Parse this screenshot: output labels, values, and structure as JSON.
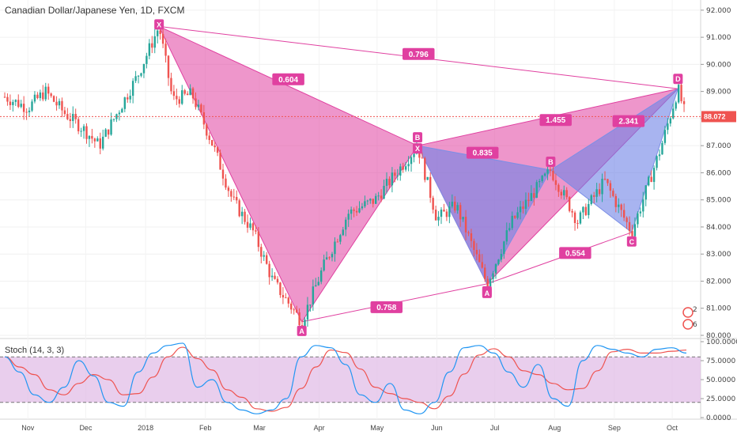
{
  "header": {
    "title": "Canadian Dollar/Japanese Yen, 1D, FXCM",
    "stoch_label": "Stoch (14, 3, 3)"
  },
  "colors": {
    "up": "#26a69a",
    "down": "#ef5350",
    "pattern_pink": "#e040a0",
    "pattern_blue": "#7b8fe6",
    "stoch_k": "#2196f3",
    "stoch_d": "#ef5350",
    "stoch_band": "#e1bee7",
    "last_price": "#ef5350"
  },
  "chart_data": [
    {
      "type": "line",
      "name": "price",
      "y_axis_ticks": [
        "92.000",
        "91.000",
        "90.000",
        "89.000",
        "88.000",
        "87.000",
        "86.000",
        "85.000",
        "84.000",
        "83.000",
        "82.000",
        "81.000",
        "80.000"
      ],
      "ylim": [
        80.0,
        92.2
      ],
      "x_labels": [
        "Nov",
        "Dec",
        "2018",
        "Feb",
        "Mar",
        "Apr",
        "May",
        "Jun",
        "Jul",
        "Aug",
        "Sep",
        "Oct"
      ],
      "last_price": "88.072",
      "price_path": [
        {
          "date": "2017-10-20",
          "close": 88.8
        },
        {
          "date": "2017-11-01",
          "close": 88.4
        },
        {
          "date": "2017-11-10",
          "close": 89.0
        },
        {
          "date": "2017-11-20",
          "close": 88.2
        },
        {
          "date": "2017-11-30",
          "close": 87.6
        },
        {
          "date": "2017-12-08",
          "close": 87.0
        },
        {
          "date": "2017-12-18",
          "close": 88.3
        },
        {
          "date": "2017-12-28",
          "close": 89.6
        },
        {
          "date": "2018-01-08",
          "close": 91.4
        },
        {
          "date": "2018-01-15",
          "close": 88.7
        },
        {
          "date": "2018-01-25",
          "close": 88.9
        },
        {
          "date": "2018-02-05",
          "close": 87.0
        },
        {
          "date": "2018-02-15",
          "close": 85.0
        },
        {
          "date": "2018-02-26",
          "close": 83.8
        },
        {
          "date": "2018-03-08",
          "close": 82.0
        },
        {
          "date": "2018-03-23",
          "close": 80.5
        },
        {
          "date": "2018-04-03",
          "close": 82.5
        },
        {
          "date": "2018-04-16",
          "close": 84.5
        },
        {
          "date": "2018-04-30",
          "close": 85.0
        },
        {
          "date": "2018-05-22",
          "close": 87.0
        },
        {
          "date": "2018-06-01",
          "close": 84.3
        },
        {
          "date": "2018-06-11",
          "close": 84.8
        },
        {
          "date": "2018-06-27",
          "close": 81.9
        },
        {
          "date": "2018-07-10",
          "close": 84.2
        },
        {
          "date": "2018-07-30",
          "close": 86.1
        },
        {
          "date": "2018-08-13",
          "close": 84.2
        },
        {
          "date": "2018-08-27",
          "close": 85.7
        },
        {
          "date": "2018-09-10",
          "close": 83.8
        },
        {
          "date": "2018-09-25",
          "close": 86.9
        },
        {
          "date": "2018-10-04",
          "close": 89.1
        },
        {
          "date": "2018-10-08",
          "close": 88.07
        }
      ],
      "pattern1": {
        "points": [
          {
            "label": "X",
            "date": "2018-01-08",
            "price": 91.4
          },
          {
            "label": "A",
            "date": "2018-03-23",
            "price": 80.5
          },
          {
            "label": "B",
            "date": "2018-05-22",
            "price": 87.0
          },
          {
            "label": "C",
            "date": "2018-06-27",
            "price": 81.9
          },
          {
            "label": "D",
            "date": "2018-10-04",
            "price": 89.1
          }
        ],
        "ratios": [
          "0.604",
          "0.758",
          "0.796",
          "1.455"
        ]
      },
      "pattern2": {
        "points": [
          {
            "label": "X",
            "date": "2018-05-22",
            "price": 87.0
          },
          {
            "label": "A",
            "date": "2018-06-27",
            "price": 81.9
          },
          {
            "label": "B",
            "date": "2018-07-30",
            "price": 86.1
          },
          {
            "label": "C",
            "date": "2018-09-10",
            "price": 83.8
          },
          {
            "label": "D",
            "date": "2018-10-04",
            "price": 89.1
          }
        ],
        "ratios": [
          "0.835",
          "0.554",
          "2.341"
        ]
      }
    },
    {
      "type": "line",
      "name": "stochastic",
      "y_axis_ticks": [
        "100.0000",
        "75.0000",
        "50.0000",
        "25.0000",
        "0.0000"
      ],
      "ylim": [
        0,
        100
      ],
      "bands": [
        20,
        80
      ],
      "k_values": [
        80,
        60,
        30,
        20,
        40,
        75,
        55,
        20,
        15,
        60,
        85,
        95,
        98,
        40,
        50,
        20,
        10,
        5,
        10,
        25,
        80,
        95,
        92,
        70,
        30,
        20,
        45,
        10,
        5,
        20,
        60,
        92,
        95,
        85,
        60,
        40,
        70,
        25,
        15,
        75,
        95,
        90,
        85,
        80,
        90,
        92,
        85
      ]
    }
  ],
  "badges": {
    "badge_a": "2",
    "badge_b": "6"
  }
}
